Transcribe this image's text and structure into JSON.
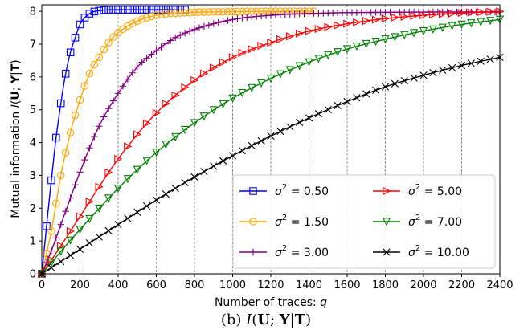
{
  "chart_data": {
    "type": "line",
    "xlabel": "Number of traces: ",
    "xlabel_symbol": "q",
    "ylabel": "Mutual information ",
    "ylabel_expr": "I(U; Y|T)",
    "xlim": [
      0,
      2400
    ],
    "ylim": [
      0,
      8.2
    ],
    "x_ticks": [
      "0",
      "200",
      "400",
      "600",
      "800",
      "1000",
      "1200",
      "1400",
      "1600",
      "1800",
      "2000",
      "2200",
      "2400"
    ],
    "y_ticks": [
      "0",
      "1",
      "2",
      "3",
      "4",
      "5",
      "6",
      "7",
      "8"
    ],
    "grid": "vertical-dashed",
    "legend_position": "lower-right",
    "series": [
      {
        "name": "σ² = 0.50",
        "sym": "σ",
        "sup": "2",
        "val": " = 0.50",
        "color": "#0000ff",
        "marker": "square",
        "x": [
          0,
          25,
          50,
          75,
          100,
          125,
          150,
          175,
          200,
          250,
          300,
          400,
          500,
          600,
          750
        ],
        "y": [
          0,
          1.45,
          2.85,
          4.15,
          5.2,
          6.1,
          6.75,
          7.2,
          7.6,
          7.93,
          8.02,
          8.05,
          8.05,
          8.05,
          8.05
        ]
      },
      {
        "name": "σ² = 1.50",
        "sym": "σ",
        "sup": "2",
        "val": " = 1.50",
        "color": "#ffa500",
        "marker": "circle",
        "x": [
          0,
          50,
          100,
          150,
          200,
          250,
          300,
          350,
          400,
          500,
          600,
          800,
          1000,
          1200,
          1425
        ],
        "y": [
          0,
          1.3,
          3.0,
          4.3,
          5.3,
          6.1,
          6.6,
          7.05,
          7.35,
          7.7,
          7.88,
          7.97,
          7.99,
          8.0,
          8.0
        ]
      },
      {
        "name": "σ² = 3.00",
        "sym": "σ",
        "sup": "2",
        "val": " = 3.00",
        "color": "#800080",
        "marker": "plus",
        "x": [
          0,
          50,
          100,
          200,
          300,
          400,
          500,
          600,
          700,
          800,
          1000,
          1200,
          1500,
          1800,
          2100,
          2400
        ],
        "y": [
          0,
          0.7,
          1.5,
          3.1,
          4.5,
          5.5,
          6.3,
          6.8,
          7.2,
          7.45,
          7.75,
          7.88,
          7.95,
          7.97,
          7.98,
          7.98
        ]
      },
      {
        "name": "σ² = 5.00",
        "sym": "σ",
        "sup": "2",
        "val": " = 5.00",
        "color": "#ff0000",
        "marker": "triangle-right",
        "x": [
          0,
          100,
          200,
          400,
          600,
          800,
          1000,
          1200,
          1400,
          1600,
          1800,
          2000,
          2200,
          2400
        ],
        "y": [
          0,
          0.85,
          1.75,
          3.5,
          4.9,
          5.9,
          6.6,
          7.05,
          7.4,
          7.62,
          7.78,
          7.88,
          7.95,
          8.0
        ]
      },
      {
        "name": "σ² = 7.00",
        "sym": "σ",
        "sup": "2",
        "val": " = 7.00",
        "color": "#008000",
        "marker": "triangle-down",
        "x": [
          0,
          200,
          400,
          600,
          800,
          1000,
          1200,
          1400,
          1600,
          1800,
          2000,
          2200,
          2400
        ],
        "y": [
          0,
          1.35,
          2.6,
          3.7,
          4.6,
          5.35,
          5.95,
          6.45,
          6.85,
          7.15,
          7.4,
          7.6,
          7.75
        ]
      },
      {
        "name": "σ² = 10.00",
        "sym": "σ",
        "sup": "2",
        "val": " = 10.00",
        "color": "#000000",
        "marker": "x",
        "x": [
          0,
          200,
          400,
          600,
          800,
          1000,
          1200,
          1400,
          1600,
          1800,
          2000,
          2200,
          2400
        ],
        "y": [
          0,
          0.75,
          1.5,
          2.25,
          2.95,
          3.6,
          4.2,
          4.75,
          5.25,
          5.7,
          6.05,
          6.35,
          6.6
        ]
      }
    ],
    "caption": "(b) ",
    "caption_expr": "I(U; Y|T)"
  }
}
